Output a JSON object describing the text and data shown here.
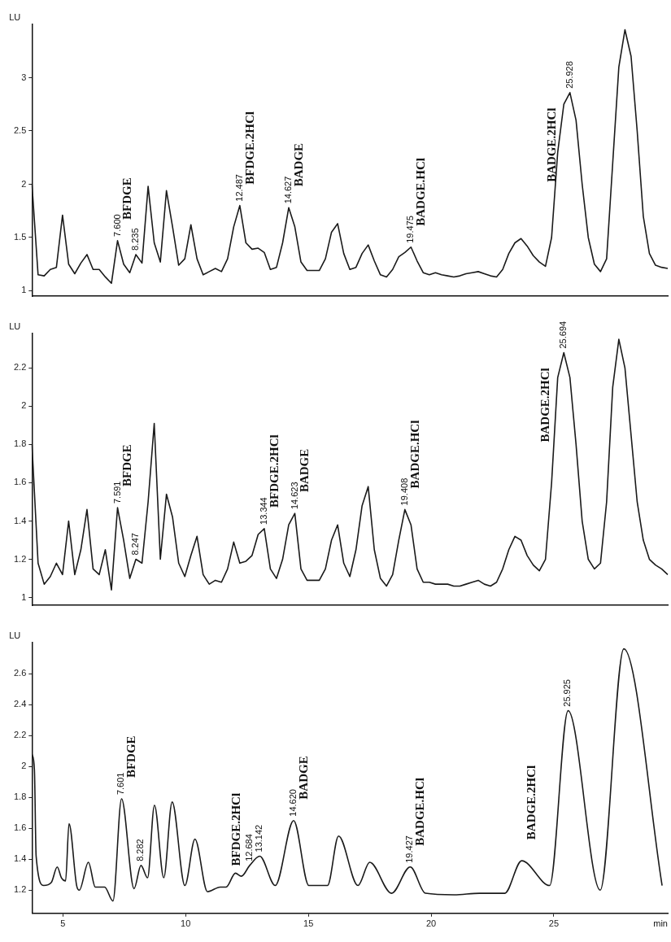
{
  "chart_data": [
    {
      "type": "line",
      "ylabel": "LU",
      "ylim": [
        0.95,
        3.5
      ],
      "yticks": [
        1,
        1.5,
        2,
        2.5,
        3
      ],
      "tick_labels": "y",
      "grid": false,
      "legend": false,
      "categories": [
        null,
        null,
        null,
        null,
        null,
        null,
        null,
        null,
        null,
        null,
        null,
        null,
        null,
        null,
        null,
        null,
        null,
        null,
        null,
        null,
        null,
        null,
        null,
        null,
        null,
        null,
        null,
        null,
        null,
        null,
        null,
        null,
        null,
        null,
        null,
        null,
        null,
        null,
        null,
        null,
        null,
        null,
        null,
        null,
        null,
        null,
        null,
        null,
        null,
        null,
        null,
        null,
        null,
        null,
        null,
        null,
        null,
        null,
        null,
        null,
        null,
        null,
        null,
        null,
        null,
        null,
        null,
        null,
        null,
        null,
        null,
        null,
        null,
        null,
        null,
        null,
        null,
        null,
        null,
        null,
        null,
        null,
        null,
        null,
        null,
        null,
        null,
        null,
        null,
        null,
        null,
        null,
        null,
        null,
        null,
        null,
        null,
        null,
        null,
        null,
        null,
        null,
        null,
        null,
        null
      ],
      "series": [
        {
          "color": "#1a1a1a",
          "values": [
            2.0,
            1.15,
            1.14,
            1.2,
            1.22,
            1.71,
            1.25,
            1.16,
            1.26,
            1.34,
            1.2,
            1.2,
            1.13,
            1.07,
            1.47,
            1.25,
            1.17,
            1.34,
            1.26,
            1.98,
            1.45,
            1.27,
            1.94,
            1.6,
            1.24,
            1.3,
            1.62,
            1.3,
            1.15,
            1.18,
            1.21,
            1.18,
            1.3,
            1.6,
            1.8,
            1.45,
            1.39,
            1.4,
            1.36,
            1.2,
            1.22,
            1.45,
            1.78,
            1.6,
            1.27,
            1.19,
            1.19,
            1.19,
            1.3,
            1.55,
            1.63,
            1.35,
            1.2,
            1.22,
            1.35,
            1.43,
            1.28,
            1.15,
            1.13,
            1.2,
            1.32,
            1.36,
            1.41,
            1.28,
            1.17,
            1.15,
            1.17,
            1.15,
            1.14,
            1.13,
            1.14,
            1.16,
            1.17,
            1.18,
            1.16,
            1.14,
            1.13,
            1.2,
            1.35,
            1.45,
            1.49,
            1.42,
            1.33,
            1.27,
            1.23,
            1.5,
            2.3,
            2.75,
            2.86,
            2.6,
            2.0,
            1.5,
            1.25,
            1.18,
            1.3,
            2.2,
            3.1,
            3.45,
            3.2,
            2.5,
            1.7,
            1.35,
            1.24,
            1.22,
            1.21
          ]
        }
      ],
      "annotations": [
        {
          "text": "7.600",
          "y": 1.47
        },
        "BFDGE",
        {
          "text": "8.235",
          "y": 1.34
        },
        {
          "text": "12.487",
          "y": 1.8
        },
        "BFDGE.2HCl",
        {
          "text": "14.627",
          "y": 1.78
        },
        "BADGE",
        {
          "text": "19.475",
          "y": 1.41
        },
        "BADGE.HCl",
        {
          "text": "25.928",
          "y": 2.86
        },
        "BADGE.2HCl"
      ]
    },
    {
      "type": "line",
      "ylabel": "LU",
      "ylim": [
        0.96,
        2.38
      ],
      "yticks": [
        1,
        1.2,
        1.4,
        1.6,
        1.8,
        2,
        2.2
      ],
      "tick_labels": "y",
      "grid": false,
      "legend": false,
      "categories": [
        null,
        null,
        null,
        null,
        null,
        null,
        null,
        null,
        null,
        null,
        null,
        null,
        null,
        null,
        null,
        null,
        null,
        null,
        null,
        null,
        null,
        null,
        null,
        null,
        null,
        null,
        null,
        null,
        null,
        null,
        null,
        null,
        null,
        null,
        null,
        null,
        null,
        null,
        null,
        null,
        null,
        null,
        null,
        null,
        null,
        null,
        null,
        null,
        null,
        null,
        null,
        null,
        null,
        null,
        null,
        null,
        null,
        null,
        null,
        null,
        null,
        null,
        null,
        null,
        null,
        null,
        null,
        null,
        null,
        null,
        null,
        null,
        null,
        null,
        null,
        null,
        null,
        null,
        null,
        null,
        null,
        null,
        null,
        null,
        null,
        null,
        null,
        null,
        null,
        null,
        null,
        null,
        null,
        null,
        null,
        null,
        null,
        null,
        null,
        null,
        null,
        null,
        null,
        null,
        null
      ],
      "series": [
        {
          "color": "#1a1a1a",
          "values": [
            1.8,
            1.18,
            1.07,
            1.11,
            1.18,
            1.12,
            1.4,
            1.12,
            1.25,
            1.46,
            1.15,
            1.12,
            1.25,
            1.04,
            1.47,
            1.3,
            1.1,
            1.2,
            1.18,
            1.5,
            1.91,
            1.2,
            1.54,
            1.42,
            1.18,
            1.11,
            1.22,
            1.32,
            1.12,
            1.07,
            1.09,
            1.08,
            1.15,
            1.29,
            1.18,
            1.19,
            1.22,
            1.33,
            1.36,
            1.15,
            1.1,
            1.2,
            1.38,
            1.44,
            1.15,
            1.09,
            1.09,
            1.09,
            1.15,
            1.3,
            1.38,
            1.18,
            1.11,
            1.25,
            1.48,
            1.58,
            1.25,
            1.1,
            1.06,
            1.12,
            1.3,
            1.46,
            1.38,
            1.15,
            1.08,
            1.08,
            1.07,
            1.07,
            1.07,
            1.06,
            1.06,
            1.07,
            1.08,
            1.09,
            1.07,
            1.06,
            1.08,
            1.15,
            1.25,
            1.32,
            1.3,
            1.22,
            1.17,
            1.14,
            1.2,
            1.6,
            2.15,
            2.28,
            2.15,
            1.8,
            1.4,
            1.2,
            1.15,
            1.18,
            1.5,
            2.1,
            2.35,
            2.2,
            1.85,
            1.5,
            1.3,
            1.2,
            1.17,
            1.15,
            1.12
          ]
        }
      ],
      "annotations": [
        {
          "text": "7.591",
          "y": 1.47
        },
        "BFDGE",
        {
          "text": "8.247",
          "y": 1.2
        },
        {
          "text": "13.344",
          "y": 1.36
        },
        "BFDGE.2HCl",
        {
          "text": "14.623",
          "y": 1.44
        },
        "BADGE",
        {
          "text": "19.408",
          "y": 1.46
        },
        "BADGE.HCl",
        {
          "text": "25.694",
          "y": 2.28
        },
        "BADGE.2HCl"
      ]
    },
    {
      "type": "line",
      "ylabel": "LU",
      "xlabel": "min",
      "xlim": [
        3.74,
        29.64
      ],
      "ylim": [
        1.05,
        2.8
      ],
      "xticks": [
        5,
        10,
        15,
        20,
        25
      ],
      "yticks": [
        1.2,
        1.4,
        1.6,
        1.8,
        2,
        2.2,
        2.4,
        2.6
      ],
      "grid": false,
      "legend": false,
      "series": [
        {
          "color": "#1a1a1a",
          "x": [
            3.74,
            3.84,
            3.91,
            4.22,
            4.53,
            4.77,
            4.94,
            5.11,
            5.25,
            5.56,
            5.67,
            6.04,
            6.32,
            6.7,
            7.04,
            7.39,
            7.9,
            8.18,
            8.45,
            8.73,
            9.11,
            9.45,
            9.97,
            10.38,
            10.89,
            11.41,
            11.65,
            12.03,
            12.27,
            12.61,
            13.02,
            13.65,
            14.4,
            15.02,
            15.61,
            15.78,
            16.23,
            17.02,
            17.5,
            18.39,
            19.15,
            19.77,
            20.94,
            21.97,
            23.0,
            23.69,
            24.83,
            25.58,
            26.89,
            27.85,
            29.41
          ],
          "values": [
            2.08,
            1.98,
            1.42,
            1.23,
            1.25,
            1.35,
            1.28,
            1.26,
            1.63,
            1.23,
            1.2,
            1.38,
            1.22,
            1.22,
            1.13,
            1.79,
            1.21,
            1.36,
            1.28,
            1.75,
            1.28,
            1.77,
            1.23,
            1.53,
            1.19,
            1.22,
            1.22,
            1.31,
            1.29,
            1.36,
            1.42,
            1.23,
            1.65,
            1.23,
            1.23,
            1.23,
            1.55,
            1.23,
            1.38,
            1.18,
            1.35,
            1.18,
            1.17,
            1.18,
            1.18,
            1.39,
            1.23,
            2.36,
            1.2,
            2.76,
            1.23
          ]
        }
      ],
      "annotations": [
        {
          "text": "7.601",
          "x": 7.39,
          "y": 1.79
        },
        {
          "text": "BFDGE",
          "x": 7.39,
          "y": 1.79
        },
        {
          "text": "8.282",
          "x": 8.18,
          "y": 1.36
        },
        {
          "text": "12.684",
          "x": 12.61,
          "y": 1.36
        },
        {
          "text": "13.142",
          "x": 13.02,
          "y": 1.42
        },
        {
          "text": "BFDGE.2HCl",
          "x": 11.65,
          "y": 1.22
        },
        {
          "text": "14.620",
          "x": 14.4,
          "y": 1.65
        },
        {
          "text": "BADGE",
          "x": 14.4,
          "y": 1.65
        },
        {
          "text": "19.427",
          "x": 19.15,
          "y": 1.35
        },
        {
          "text": "BADGE.HCl",
          "x": 19.15,
          "y": 1.35
        },
        {
          "text": "25.925",
          "x": 25.58,
          "y": 2.36
        },
        {
          "text": "BADGE.2HCl",
          "x": 23.69,
          "y": 1.39
        }
      ]
    }
  ]
}
